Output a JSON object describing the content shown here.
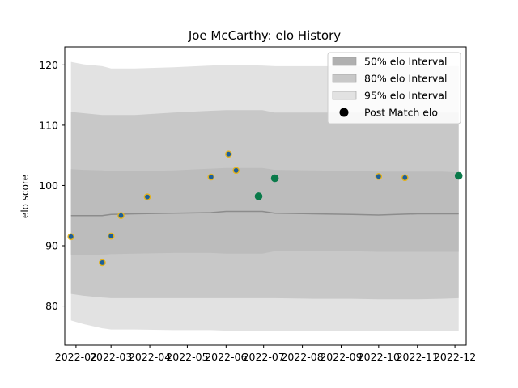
{
  "chart_data": {
    "type": "scatter",
    "title": "Joe McCarthy: elo History",
    "xlabel": "",
    "ylabel": "elo score",
    "x_ticks": [
      "2022-02",
      "2022-03",
      "2022-04",
      "2022-05",
      "2022-06",
      "2022-07",
      "2022-08",
      "2022-09",
      "2022-10",
      "2022-11",
      "2022-12"
    ],
    "y_ticks": [
      80,
      90,
      100,
      110,
      120
    ],
    "ylim": [
      73.5,
      123
    ],
    "xlim": [
      "2022-01-23",
      "2022-12-10"
    ],
    "grid": false,
    "legend_position": "top-right",
    "legend": [
      {
        "label": "50% elo Interval",
        "kind": "band",
        "color": "#b0b0b0"
      },
      {
        "label": "80% elo Interval",
        "kind": "band",
        "color": "#c8c8c8"
      },
      {
        "label": "95% elo Interval",
        "kind": "band",
        "color": "#e2e2e2"
      },
      {
        "label": "Post Match elo",
        "kind": "marker",
        "color": "#000000"
      }
    ],
    "colors": {
      "band_95": "#e2e2e2",
      "band_80": "#c8c8c8",
      "band_50": "#bcbcbc",
      "mean_line": "#8c8c8c",
      "point_fill": "#1c5f9a",
      "point_edge": "#e3b320",
      "point_fill_win": "#0a7a4a"
    },
    "band_dates": [
      "2022-01-28",
      "2022-02-07",
      "2022-02-22",
      "2022-03-01",
      "2022-03-20",
      "2022-04-20",
      "2022-05-20",
      "2022-06-01",
      "2022-06-30",
      "2022-07-10",
      "2022-08-10",
      "2022-09-10",
      "2022-10-01",
      "2022-10-15",
      "2022-11-01",
      "2022-11-20",
      "2022-12-04"
    ],
    "band_95_upper": [
      120.5,
      120.1,
      119.8,
      119.4,
      119.4,
      119.6,
      119.9,
      120.0,
      119.9,
      119.8,
      119.8,
      119.8,
      119.8,
      119.8,
      119.8,
      119.8,
      119.8
    ],
    "band_95_lower": [
      77.6,
      77.0,
      76.3,
      76.1,
      76.1,
      76.0,
      76.0,
      75.9,
      75.9,
      75.9,
      75.9,
      75.9,
      75.9,
      75.9,
      75.9,
      75.9,
      75.9
    ],
    "band_80_upper": [
      112.2,
      112.0,
      111.7,
      111.7,
      111.7,
      112.1,
      112.4,
      112.5,
      112.5,
      112.1,
      112.1,
      112.1,
      112.1,
      112.1,
      112.1,
      112.1,
      112.1
    ],
    "band_80_lower": [
      82.0,
      81.7,
      81.4,
      81.3,
      81.3,
      81.3,
      81.3,
      81.3,
      81.3,
      81.3,
      81.2,
      81.2,
      81.1,
      81.1,
      81.1,
      81.2,
      81.3
    ],
    "band_50_upper": [
      102.7,
      102.6,
      102.5,
      102.4,
      102.4,
      102.5,
      102.8,
      102.9,
      102.9,
      102.6,
      102.5,
      102.4,
      102.3,
      102.3,
      102.3,
      102.3,
      102.2
    ],
    "band_50_lower": [
      88.4,
      88.4,
      88.5,
      88.6,
      88.7,
      88.8,
      88.8,
      88.7,
      88.7,
      89.1,
      89.1,
      89.1,
      89.0,
      89.0,
      89.0,
      89.0,
      89.0
    ],
    "mean": [
      95.0,
      95.0,
      95.0,
      95.2,
      95.3,
      95.4,
      95.5,
      95.7,
      95.7,
      95.4,
      95.3,
      95.2,
      95.1,
      95.2,
      95.3,
      95.3,
      95.3
    ],
    "series": [
      {
        "name": "Post Match elo",
        "x": [
          "2022-01-28",
          "2022-02-22",
          "2022-03-01",
          "2022-03-09",
          "2022-03-30",
          "2022-05-20",
          "2022-06-03",
          "2022-06-09",
          "2022-06-27",
          "2022-07-10",
          "2022-10-01",
          "2022-10-22",
          "2022-12-04"
        ],
        "y": [
          91.5,
          87.2,
          91.6,
          95.0,
          98.1,
          101.4,
          105.2,
          102.5,
          98.2,
          101.2,
          101.5,
          101.3,
          101.6
        ],
        "win": [
          false,
          false,
          false,
          false,
          false,
          false,
          false,
          false,
          true,
          true,
          false,
          false,
          true
        ]
      }
    ]
  }
}
